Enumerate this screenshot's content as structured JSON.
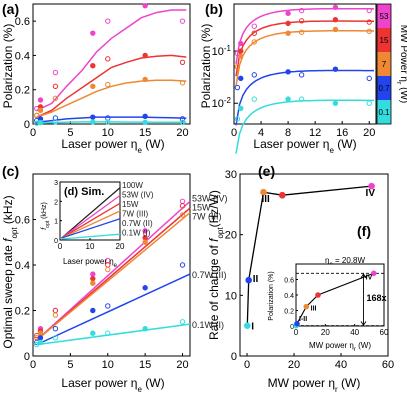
{
  "panels": {
    "a": {
      "label": "(a)"
    },
    "b": {
      "label": "(b)"
    },
    "c": {
      "label": "(c)"
    },
    "d": {
      "label": "(d)",
      "sim": "Sim."
    },
    "e": {
      "label": "(e)"
    },
    "f": {
      "label": "(f)"
    }
  },
  "colors": {
    "p01": "#33dddd",
    "p07": "#2244ee",
    "p7": "#ee8833",
    "p15": "#ee3333",
    "p53": "#ee44cc",
    "p100": "#222222"
  },
  "chart_data": [
    {
      "panel": "a",
      "type": "scatter",
      "xlabel": "Laser power η_e (W)",
      "ylabel": "Polarization (%)",
      "xlim": [
        0,
        21
      ],
      "ylim": [
        0,
        0.7
      ],
      "xticks": [
        "0",
        "5",
        "10",
        "15",
        "20"
      ],
      "yticks": [
        "0",
        "0.2",
        "0.4",
        "0.6"
      ],
      "series": [
        {
          "key": "p53",
          "x": [
            0.5,
            1,
            3,
            8,
            10,
            15,
            20
          ],
          "y": [
            0.09,
            0.14,
            0.3,
            0.53,
            0.6,
            0.69,
            0.6
          ],
          "fit": [
            0.08,
            0.12,
            0.22,
            0.31,
            0.42,
            0.5,
            0.56,
            0.62,
            0.65,
            0.665,
            0.665
          ]
        },
        {
          "key": "p15",
          "x": [
            0.5,
            1,
            3,
            8,
            10,
            15,
            20
          ],
          "y": [
            0.05,
            0.1,
            0.22,
            0.34,
            0.38,
            0.4,
            0.36
          ],
          "fit": [
            0.04,
            0.08,
            0.15,
            0.21,
            0.27,
            0.33,
            0.36,
            0.385,
            0.395,
            0.4,
            0.39
          ]
        },
        {
          "key": "p7",
          "x": [
            0.5,
            1,
            3,
            8,
            10,
            15,
            20
          ],
          "y": [
            0.05,
            0.08,
            0.15,
            0.22,
            0.23,
            0.26,
            0.24
          ],
          "fit": [
            0.04,
            0.07,
            0.11,
            0.15,
            0.19,
            0.22,
            0.24,
            0.25,
            0.255,
            0.255,
            0.25
          ]
        },
        {
          "key": "p07",
          "x": [
            0.5,
            1,
            3,
            8,
            10,
            15,
            20
          ],
          "y": [
            0.02,
            0.03,
            0.035,
            0.04,
            0.035,
            0.045,
            0.03
          ],
          "fit": [
            0.01,
            0.02,
            0.03,
            0.035,
            0.04,
            0.04,
            0.04,
            0.04,
            0.038,
            0.036,
            0.034
          ]
        },
        {
          "key": "p01",
          "x": [
            0.5,
            1,
            3,
            8,
            10,
            15,
            20
          ],
          "y": [
            0.005,
            0.008,
            0.012,
            0.012,
            0.012,
            0.01,
            0.01
          ],
          "fit": [
            0.004,
            0.008,
            0.01,
            0.012,
            0.012,
            0.012,
            0.011,
            0.011,
            0.01,
            0.01,
            0.01
          ]
        }
      ]
    },
    {
      "panel": "b",
      "type": "scatter",
      "xlabel": "Laser power η_e (W)",
      "ylabel": "Polarization (%)",
      "scale_y": "log",
      "xlim": [
        0,
        21
      ],
      "ylim": [
        0.004,
        0.8
      ],
      "xticks": [
        "0",
        "4",
        "8",
        "12",
        "16",
        "20"
      ],
      "yticks": [
        "10^-2",
        "10^-1"
      ],
      "colorbar": {
        "label": "MW Power η_r (W)",
        "ticks": [
          "53",
          "15",
          "7",
          "0.7",
          "0.1"
        ]
      },
      "series": [
        {
          "key": "p53",
          "x": [
            0.5,
            1,
            3,
            8,
            10,
            15,
            20
          ],
          "y": [
            0.09,
            0.14,
            0.3,
            0.53,
            0.6,
            0.69,
            0.6
          ]
        },
        {
          "key": "p15",
          "x": [
            0.5,
            1,
            3,
            8,
            10,
            15,
            20
          ],
          "y": [
            0.05,
            0.1,
            0.22,
            0.34,
            0.38,
            0.4,
            0.36
          ]
        },
        {
          "key": "p7",
          "x": [
            0.5,
            1,
            3,
            8,
            10,
            15,
            20
          ],
          "y": [
            0.05,
            0.08,
            0.15,
            0.22,
            0.23,
            0.26,
            0.24
          ]
        },
        {
          "key": "p07",
          "x": [
            0.5,
            1,
            3,
            8,
            10,
            15,
            20
          ],
          "y": [
            0.02,
            0.03,
            0.035,
            0.04,
            0.035,
            0.045,
            0.03
          ]
        },
        {
          "key": "p01",
          "x": [
            0.5,
            1,
            3,
            8,
            10,
            15,
            20
          ],
          "y": [
            0.005,
            0.008,
            0.012,
            0.012,
            0.012,
            0.01,
            0.01
          ]
        }
      ]
    },
    {
      "panel": "c",
      "type": "scatter",
      "xlabel": "Laser power η_e (W)",
      "ylabel": "Optimal sweep rate f_opt (kHz)",
      "xlim": [
        0,
        21
      ],
      "ylim": [
        0,
        0.8
      ],
      "xticks": [
        "0",
        "5",
        "10",
        "15",
        "20"
      ],
      "yticks": [
        "0",
        "0.2",
        "0.4",
        "0.6"
      ],
      "right_labels": [
        "53W (IV)",
        "15W",
        "7W (III)",
        "0.7W (II)",
        "0.1W (I)"
      ],
      "series": [
        {
          "key": "p53",
          "x": [
            0.5,
            1,
            3,
            8,
            10,
            15,
            20
          ],
          "y": [
            0.08,
            0.12,
            0.2,
            0.36,
            0.42,
            0.55,
            0.68
          ],
          "fit": [
            0.07,
            0.68
          ]
        },
        {
          "key": "p15",
          "x": [
            0.5,
            1,
            3,
            8,
            10,
            15,
            20
          ],
          "y": [
            0.09,
            0.11,
            0.2,
            0.34,
            0.4,
            0.52,
            0.66
          ],
          "fit": [
            0.07,
            0.65
          ]
        },
        {
          "key": "p7",
          "x": [
            0.5,
            1,
            3,
            8,
            10,
            15,
            20
          ],
          "y": [
            0.08,
            0.1,
            0.18,
            0.32,
            0.38,
            0.5,
            0.62
          ],
          "fit": [
            0.07,
            0.63
          ]
        },
        {
          "key": "p07",
          "x": [
            0.5,
            1,
            3,
            8,
            10,
            15,
            20
          ],
          "y": [
            0.06,
            0.08,
            0.12,
            0.2,
            0.22,
            0.3,
            0.4
          ],
          "fit": [
            0.05,
            0.36
          ]
        },
        {
          "key": "p01",
          "x": [
            0.5,
            1,
            3,
            8,
            10,
            15,
            20
          ],
          "y": [
            0.05,
            0.06,
            0.08,
            0.1,
            0.1,
            0.12,
            0.15
          ],
          "fit": [
            0.05,
            0.14
          ]
        }
      ]
    },
    {
      "panel": "d",
      "type": "line",
      "xlabel": "Laser power η_e",
      "ylabel": "f_opt (kHz)",
      "xlim": [
        0,
        20
      ],
      "ylim": [
        0,
        3
      ],
      "xticks": [
        "0",
        "10",
        "20"
      ],
      "yticks": [
        "0",
        "1",
        "2",
        "3"
      ],
      "labels": [
        "100W",
        "53W (IV)",
        "15W",
        "7W (III)",
        "0.7W (II)",
        "0.1W (I)"
      ],
      "series": [
        {
          "key": "p100",
          "y0": 0.1,
          "y1": 2.7
        },
        {
          "key": "p53",
          "y0": 0.1,
          "y1": 2.3
        },
        {
          "key": "p15",
          "y0": 0.1,
          "y1": 1.9
        },
        {
          "key": "p7",
          "y0": 0.1,
          "y1": 1.5
        },
        {
          "key": "p07",
          "y0": 0.1,
          "y1": 1.1
        },
        {
          "key": "p01",
          "y0": 0.05,
          "y1": 0.3
        }
      ]
    },
    {
      "panel": "e",
      "type": "line",
      "xlabel": "MW power η_r (W)",
      "ylabel": "Rate of change of f_opt (Hz/W)",
      "xlim": [
        -3,
        60
      ],
      "ylim": [
        0,
        30
      ],
      "xticks": [
        "0",
        "20",
        "40",
        "60"
      ],
      "yticks": [
        "0",
        "10",
        "20",
        "30"
      ],
      "points": [
        {
          "x": 0.1,
          "y": 5,
          "key": "p01",
          "label": "I"
        },
        {
          "x": 0.7,
          "y": 12.5,
          "key": "p07",
          "label": "II"
        },
        {
          "x": 7,
          "y": 27,
          "key": "p7",
          "label": "III"
        },
        {
          "x": 15,
          "y": 26.5,
          "key": "p15",
          "label": ""
        },
        {
          "x": 53,
          "y": 28,
          "key": "p53",
          "label": "IV"
        }
      ]
    },
    {
      "panel": "f",
      "type": "line",
      "xlabel": "MW power η_r (W)",
      "ylabel": "Polarization (%)",
      "annotation": "η_e = 20.8W",
      "ratio": "168x",
      "xlim": [
        0,
        60
      ],
      "ylim": [
        0,
        0.8
      ],
      "xticks": [
        "0",
        "20",
        "40",
        "60"
      ],
      "yticks": [
        "0",
        "0.2",
        "0.4",
        "0.6"
      ],
      "points": [
        {
          "x": 0.1,
          "y": 0.004,
          "key": "p01"
        },
        {
          "x": 0.7,
          "y": 0.03,
          "key": "p07"
        },
        {
          "x": 7,
          "y": 0.25,
          "key": "p7"
        },
        {
          "x": 15,
          "y": 0.4,
          "key": "p15"
        },
        {
          "x": 53,
          "y": 0.68,
          "key": "p53"
        }
      ],
      "point_labels": [
        "I-II",
        "III",
        "IV"
      ]
    }
  ]
}
